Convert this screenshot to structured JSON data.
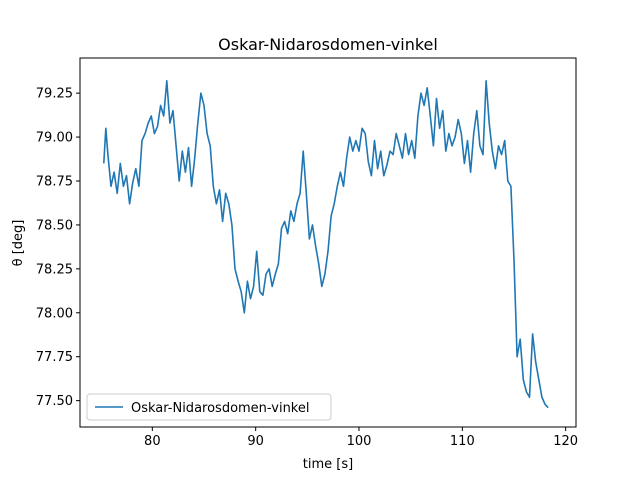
{
  "chart_data": {
    "type": "line",
    "title": "Oskar-Nidarosdomen-vinkel",
    "xlabel": "time [s]",
    "ylabel": "θ [deg]",
    "xlim": [
      73,
      121
    ],
    "ylim": [
      77.35,
      79.45
    ],
    "x_ticks": [
      80,
      90,
      100,
      110,
      120
    ],
    "x_tick_labels": [
      "80",
      "90",
      "100",
      "110",
      "120"
    ],
    "y_ticks": [
      77.5,
      77.75,
      78.0,
      78.25,
      78.5,
      78.75,
      79.0,
      79.25
    ],
    "y_tick_labels": [
      "77.50",
      "77.75",
      "78.00",
      "78.25",
      "78.50",
      "78.75",
      "79.00",
      "79.25"
    ],
    "grid": false,
    "legend_position": "lower-left",
    "series": [
      {
        "name": "Oskar-Nidarosdomen-vinkel",
        "color": "#1f77b4",
        "x": [
          75.3,
          75.5,
          75.7,
          76.0,
          76.3,
          76.6,
          76.9,
          77.2,
          77.5,
          77.8,
          78.1,
          78.4,
          78.7,
          79.0,
          79.3,
          79.6,
          79.9,
          80.2,
          80.5,
          80.8,
          81.1,
          81.4,
          81.7,
          82.0,
          82.3,
          82.6,
          82.9,
          83.2,
          83.5,
          83.8,
          84.1,
          84.4,
          84.7,
          85.0,
          85.3,
          85.6,
          85.9,
          86.2,
          86.5,
          86.8,
          87.1,
          87.4,
          87.7,
          88.0,
          88.3,
          88.6,
          88.9,
          89.2,
          89.5,
          89.8,
          90.1,
          90.4,
          90.7,
          91.0,
          91.3,
          91.6,
          91.9,
          92.2,
          92.5,
          92.8,
          93.1,
          93.4,
          93.7,
          94.0,
          94.3,
          94.6,
          94.9,
          95.2,
          95.5,
          95.8,
          96.1,
          96.4,
          96.7,
          97.0,
          97.3,
          97.6,
          97.9,
          98.2,
          98.5,
          98.8,
          99.1,
          99.4,
          99.7,
          100.0,
          100.3,
          100.6,
          100.9,
          101.2,
          101.5,
          101.8,
          102.1,
          102.4,
          102.7,
          103.0,
          103.3,
          103.6,
          103.9,
          104.2,
          104.5,
          104.8,
          105.1,
          105.4,
          105.7,
          106.0,
          106.3,
          106.6,
          106.9,
          107.2,
          107.5,
          107.8,
          108.1,
          108.4,
          108.7,
          109.0,
          109.3,
          109.6,
          109.9,
          110.2,
          110.5,
          110.8,
          111.1,
          111.4,
          111.7,
          112.0,
          112.3,
          112.6,
          112.9,
          113.2,
          113.5,
          113.8,
          114.1,
          114.4,
          114.7,
          115.0,
          115.3,
          115.6,
          115.9,
          116.2,
          116.5,
          116.8,
          117.1,
          117.4,
          117.7,
          118.0,
          118.3
        ],
        "y": [
          78.85,
          79.05,
          78.9,
          78.72,
          78.8,
          78.68,
          78.85,
          78.72,
          78.78,
          78.62,
          78.74,
          78.82,
          78.72,
          78.98,
          79.02,
          79.08,
          79.12,
          79.02,
          79.06,
          79.18,
          79.12,
          79.32,
          79.08,
          79.15,
          78.95,
          78.75,
          78.92,
          78.8,
          78.94,
          78.72,
          78.88,
          79.08,
          79.25,
          79.18,
          79.02,
          78.95,
          78.72,
          78.62,
          78.7,
          78.52,
          78.68,
          78.62,
          78.5,
          78.25,
          78.18,
          78.12,
          78.0,
          78.18,
          78.08,
          78.15,
          78.35,
          78.12,
          78.1,
          78.22,
          78.25,
          78.15,
          78.22,
          78.28,
          78.48,
          78.52,
          78.45,
          78.58,
          78.52,
          78.62,
          78.68,
          78.92,
          78.68,
          78.42,
          78.5,
          78.38,
          78.28,
          78.15,
          78.22,
          78.35,
          78.55,
          78.62,
          78.72,
          78.8,
          78.72,
          78.88,
          79.0,
          78.92,
          78.98,
          78.92,
          79.05,
          79.02,
          78.86,
          78.78,
          78.98,
          78.82,
          78.92,
          78.78,
          78.84,
          78.92,
          78.9,
          79.02,
          78.95,
          78.88,
          79.02,
          78.9,
          78.98,
          78.88,
          79.12,
          79.25,
          79.18,
          79.28,
          79.12,
          78.95,
          79.22,
          79.05,
          79.15,
          78.92,
          79.02,
          78.95,
          79.0,
          79.1,
          79.02,
          78.85,
          78.98,
          78.8,
          79.02,
          79.15,
          78.95,
          78.9,
          79.32,
          79.08,
          78.92,
          78.82,
          78.95,
          78.9,
          78.98,
          78.75,
          78.72,
          78.3,
          77.75,
          77.85,
          77.62,
          77.55,
          77.52,
          77.88,
          77.72,
          77.62,
          77.52,
          77.48,
          77.46
        ]
      }
    ]
  }
}
